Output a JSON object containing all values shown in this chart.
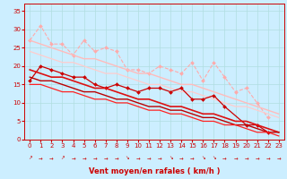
{
  "x": [
    0,
    1,
    2,
    3,
    4,
    5,
    6,
    7,
    8,
    9,
    10,
    11,
    12,
    13,
    14,
    15,
    16,
    17,
    18,
    19,
    20,
    21,
    22,
    23
  ],
  "xlabel": "Vent moyen/en rafales ( km/h )",
  "bg_color": "#cceeff",
  "grid_color": "#b0dde0",
  "series": [
    {
      "label": "light pink jagged",
      "color": "#ffaaaa",
      "linewidth": 0.8,
      "marker": "D",
      "markersize": 2.0,
      "linestyle": "--",
      "values": [
        27,
        31,
        26,
        26,
        23,
        27,
        24,
        25,
        24,
        19,
        19,
        18,
        20,
        19,
        18,
        21,
        16,
        21,
        17,
        13,
        14,
        10,
        6,
        null
      ]
    },
    {
      "label": "light pink trend high",
      "color": "#ffbbbb",
      "linewidth": 1.0,
      "marker": null,
      "markersize": 0,
      "linestyle": "-",
      "values": [
        27,
        26,
        25,
        24,
        23,
        22,
        22,
        21,
        20,
        19,
        18,
        18,
        17,
        16,
        15,
        15,
        14,
        13,
        12,
        11,
        10,
        9,
        8,
        7
      ]
    },
    {
      "label": "light pink trend low",
      "color": "#ffcccc",
      "linewidth": 0.9,
      "marker": null,
      "markersize": 0,
      "linestyle": "-",
      "values": [
        24,
        23,
        22,
        21,
        21,
        20,
        19,
        18,
        18,
        17,
        16,
        15,
        15,
        14,
        13,
        13,
        12,
        11,
        10,
        9,
        9,
        8,
        7,
        6
      ]
    },
    {
      "label": "dark red jagged",
      "color": "#cc0000",
      "linewidth": 0.9,
      "marker": "D",
      "markersize": 2.0,
      "linestyle": "-",
      "values": [
        16,
        20,
        19,
        18,
        17,
        17,
        15,
        14,
        15,
        14,
        13,
        14,
        14,
        13,
        14,
        11,
        11,
        12,
        9,
        null,
        4,
        4,
        2,
        null
      ]
    },
    {
      "label": "dark red trend 1",
      "color": "#dd1111",
      "linewidth": 1.2,
      "marker": null,
      "markersize": 0,
      "linestyle": "-",
      "values": [
        19,
        18,
        17,
        17,
        16,
        15,
        14,
        14,
        13,
        12,
        11,
        11,
        10,
        9,
        9,
        8,
        7,
        7,
        6,
        5,
        5,
        4,
        3,
        2
      ]
    },
    {
      "label": "dark red trend 2",
      "color": "#bb0000",
      "linewidth": 1.0,
      "marker": null,
      "markersize": 0,
      "linestyle": "-",
      "values": [
        17,
        16,
        16,
        15,
        14,
        13,
        13,
        12,
        11,
        11,
        10,
        9,
        9,
        8,
        8,
        7,
        6,
        6,
        5,
        4,
        4,
        3,
        2,
        2
      ]
    },
    {
      "label": "dark red trend 3",
      "color": "#ff2222",
      "linewidth": 0.9,
      "marker": null,
      "markersize": 0,
      "linestyle": "-",
      "values": [
        15,
        15,
        14,
        13,
        13,
        12,
        11,
        11,
        10,
        10,
        9,
        8,
        8,
        7,
        7,
        6,
        5,
        5,
        4,
        4,
        3,
        2,
        2,
        1
      ]
    }
  ],
  "wind_arrow_symbol": "→",
  "wind_arrow_color": "#cc0000",
  "wind_arrow_angles": [
    45,
    0,
    0,
    45,
    0,
    0,
    0,
    0,
    0,
    315,
    0,
    0,
    0,
    315,
    0,
    0,
    315,
    315,
    0,
    0,
    0,
    0,
    0,
    0
  ],
  "ylim": [
    0,
    37
  ],
  "xlim": [
    -0.5,
    23.5
  ],
  "yticks": [
    0,
    5,
    10,
    15,
    20,
    25,
    30,
    35
  ],
  "xticks": [
    0,
    1,
    2,
    3,
    4,
    5,
    6,
    7,
    8,
    9,
    10,
    11,
    12,
    13,
    14,
    15,
    16,
    17,
    18,
    19,
    20,
    21,
    22,
    23
  ],
  "xlabel_fontsize": 6,
  "xlabel_bold": true,
  "tick_fontsize": 5,
  "arrow_fontsize": 4
}
